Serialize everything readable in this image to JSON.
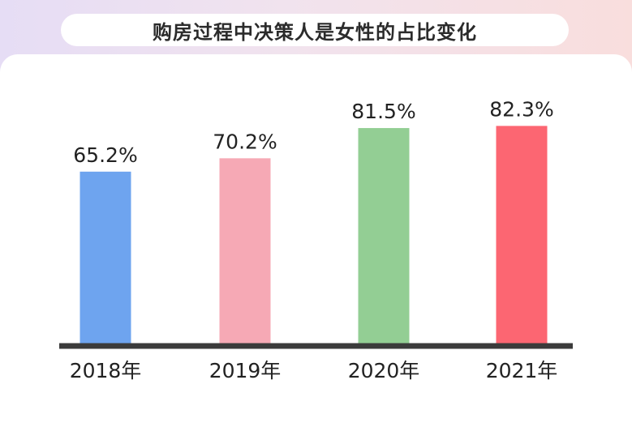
{
  "chart_data": {
    "type": "bar",
    "title": "购房过程中决策人是女性的占比变化",
    "categories": [
      "2018年",
      "2019年",
      "2020年",
      "2021年"
    ],
    "values": [
      65.2,
      70.2,
      81.5,
      82.3
    ],
    "value_labels": [
      "65.2%",
      "70.2%",
      "81.5%",
      "82.3%"
    ],
    "unit": "%",
    "colors": [
      "#6ea4ef",
      "#f6a9b5",
      "#93ce94",
      "#fc6672"
    ],
    "axis_color": "#3b3b3b",
    "grid": false,
    "legend": "none"
  }
}
